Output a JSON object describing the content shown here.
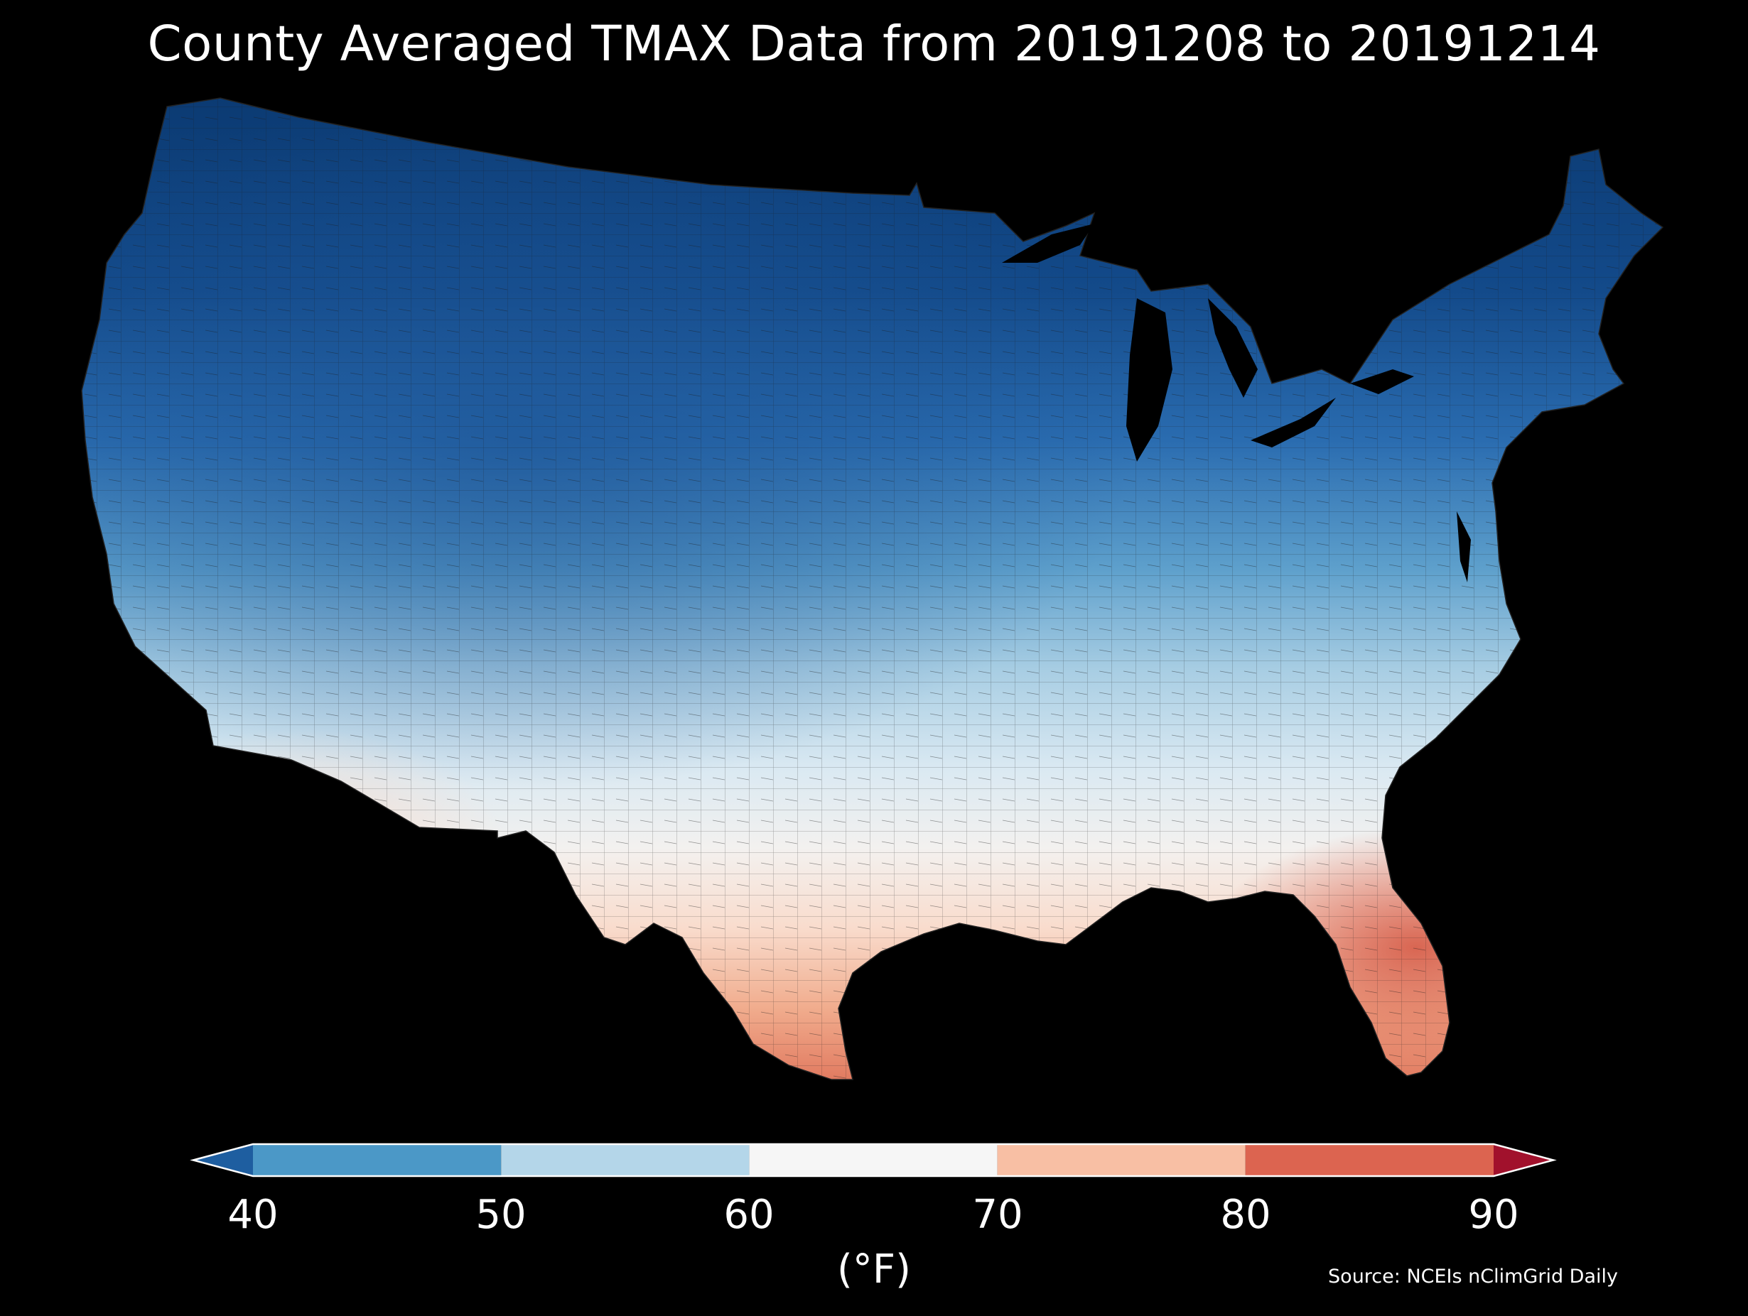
{
  "title": "County Averaged TMAX Data from 20191208 to 20191214",
  "colorbar": {
    "ticks": [
      "40",
      "50",
      "60",
      "70",
      "80",
      "90"
    ],
    "units": "(°F)",
    "bins": [
      {
        "from": 40,
        "to": 50,
        "color": "#4b98c7"
      },
      {
        "from": 50,
        "to": 60,
        "color": "#b4d6e9"
      },
      {
        "from": 60,
        "to": 70,
        "color": "#f6f6f6"
      },
      {
        "from": 70,
        "to": 80,
        "color": "#f8bfa4"
      },
      {
        "from": 80,
        "to": 90,
        "color": "#dc6450"
      }
    ],
    "under_color": "#1e5ea0",
    "over_color": "#a1112c"
  },
  "source": "Source: NCEIs nClimGrid Daily",
  "map": {
    "region": "Contiguous United States counties",
    "variable": "TMAX",
    "colormap": "RdBu_r"
  }
}
